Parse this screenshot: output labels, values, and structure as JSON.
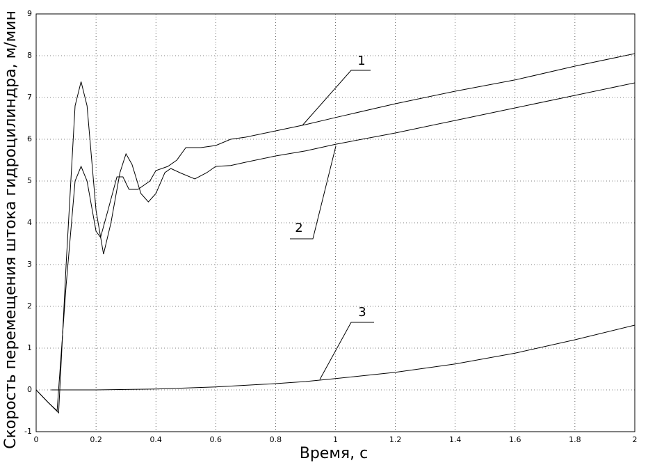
{
  "chart_data": {
    "type": "line",
    "xlabel": "Время, с",
    "ylabel": "Скорость перемещения штока гидроцилиндра, м/мин",
    "xlim": [
      0,
      2
    ],
    "ylim": [
      -1,
      9
    ],
    "xticks": [
      0,
      0.2,
      0.4,
      0.6,
      0.8,
      1,
      1.2,
      1.4,
      1.6,
      1.8,
      2
    ],
    "yticks": [
      -1,
      0,
      1,
      2,
      3,
      4,
      5,
      6,
      7,
      8,
      9
    ],
    "grid": true,
    "annotations": [
      "1",
      "2",
      "3"
    ],
    "series": [
      {
        "color": "#000000",
        "x": [
          0,
          0.04,
          0.07,
          0.1,
          0.13,
          0.15,
          0.17,
          0.2,
          0.215,
          0.24,
          0.27,
          0.29,
          0.31,
          0.34,
          0.38,
          0.4,
          0.44,
          0.47,
          0.5,
          0.55,
          0.6,
          0.65,
          0.7,
          0.8,
          0.9,
          1.0,
          1.2,
          1.4,
          1.6,
          1.8,
          2.0
        ],
        "values": [
          0,
          -0.3,
          -0.5,
          2.5,
          5.0,
          5.35,
          5.0,
          3.8,
          3.65,
          4.3,
          5.1,
          5.1,
          4.8,
          4.8,
          5.0,
          5.25,
          5.35,
          5.5,
          5.8,
          5.8,
          5.85,
          6.0,
          6.05,
          6.2,
          6.35,
          6.52,
          6.85,
          7.15,
          7.42,
          7.75,
          8.05
        ]
      },
      {
        "color": "#000000",
        "x": [
          0,
          0.04,
          0.075,
          0.1,
          0.13,
          0.15,
          0.17,
          0.2,
          0.225,
          0.25,
          0.28,
          0.3,
          0.32,
          0.35,
          0.375,
          0.4,
          0.43,
          0.45,
          0.48,
          0.53,
          0.57,
          0.6,
          0.65,
          0.7,
          0.8,
          0.9,
          1.0,
          1.2,
          1.4,
          1.6,
          1.8,
          2.0
        ],
        "values": [
          0,
          -0.3,
          -0.55,
          3,
          6.8,
          7.38,
          6.8,
          4.3,
          3.25,
          4.0,
          5.2,
          5.65,
          5.4,
          4.7,
          4.5,
          4.7,
          5.2,
          5.3,
          5.2,
          5.05,
          5.2,
          5.35,
          5.37,
          5.45,
          5.6,
          5.72,
          5.88,
          6.15,
          6.45,
          6.75,
          7.05,
          7.35
        ]
      },
      {
        "color": "#000000",
        "x": [
          0.05,
          0.2,
          0.4,
          0.6,
          0.8,
          0.9,
          1.0,
          1.2,
          1.4,
          1.6,
          1.8,
          2.0
        ],
        "values": [
          0,
          0,
          0.02,
          0.07,
          0.15,
          0.2,
          0.27,
          0.42,
          0.62,
          0.88,
          1.2,
          1.55
        ]
      }
    ]
  }
}
